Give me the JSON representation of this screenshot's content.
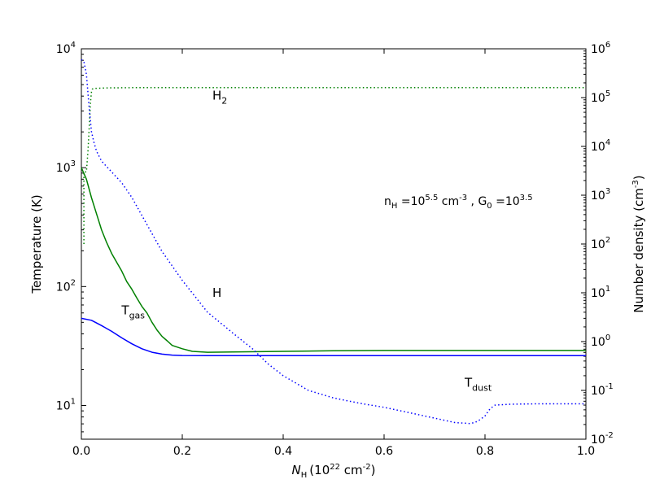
{
  "chart_data": {
    "type": "line",
    "x_axis": {
      "label_base": "N",
      "label_sub": "H",
      "label_rest": "(10",
      "label_exp": "22",
      "label_unit": " cm",
      "label_unit_exp": "-2",
      "label_close": ")",
      "range": [
        0.0,
        1.0
      ],
      "ticks": [
        {
          "value": 0.0,
          "label": "0.0"
        },
        {
          "value": 0.2,
          "label": "0.2"
        },
        {
          "value": 0.4,
          "label": "0.4"
        },
        {
          "value": 0.6,
          "label": "0.6"
        },
        {
          "value": 0.8,
          "label": "0.8"
        },
        {
          "value": 1.0,
          "label": "1.0"
        }
      ]
    },
    "y_left": {
      "label": "Temperature (K)",
      "scale": "log",
      "range": [
        5.2,
        10000
      ],
      "ticks": [
        {
          "value": 10,
          "base": "10",
          "exp": "1"
        },
        {
          "value": 100,
          "base": "10",
          "exp": "2"
        },
        {
          "value": 1000,
          "base": "10",
          "exp": "3"
        },
        {
          "value": 10000,
          "base": "10",
          "exp": "4"
        }
      ]
    },
    "y_right": {
      "label_main": "Number density (cm",
      "label_exp": "-3",
      "label_close": ")",
      "scale": "log",
      "range": [
        0.01,
        1000000
      ],
      "ticks": [
        {
          "value": 0.01,
          "base": "10",
          "exp": "-2"
        },
        {
          "value": 0.1,
          "base": "10",
          "exp": "-1"
        },
        {
          "value": 1,
          "base": "10",
          "exp": "0"
        },
        {
          "value": 10,
          "base": "10",
          "exp": "1"
        },
        {
          "value": 100,
          "base": "10",
          "exp": "2"
        },
        {
          "value": 1000,
          "base": "10",
          "exp": "3"
        },
        {
          "value": 10000,
          "base": "10",
          "exp": "4"
        },
        {
          "value": 100000,
          "base": "10",
          "exp": "5"
        },
        {
          "value": 1000000,
          "base": "10",
          "exp": "6"
        }
      ]
    },
    "annotation": {
      "n_base": "n",
      "n_sub": "H",
      "n_eq": " =10",
      "n_exp": "5.5",
      "n_unit": "  cm",
      "n_unit_exp": "-3",
      "sep": " , G",
      "g_sub": "0",
      "g_eq": " =10",
      "g_exp": "3.5"
    },
    "series": [
      {
        "name": "T",
        "name_sub": "gas",
        "axis": "left",
        "color": "#008000",
        "style": "solid",
        "x": [
          0.0,
          0.01,
          0.02,
          0.03,
          0.04,
          0.05,
          0.06,
          0.07,
          0.08,
          0.09,
          0.1,
          0.11,
          0.12,
          0.13,
          0.14,
          0.15,
          0.16,
          0.17,
          0.18,
          0.2,
          0.22,
          0.25,
          0.3,
          0.4,
          0.5,
          0.6,
          0.7,
          0.8,
          0.9,
          1.0
        ],
        "y": [
          1000,
          800,
          560,
          410,
          300,
          235,
          190,
          160,
          135,
          110,
          95,
          80,
          68,
          60,
          50,
          43,
          38,
          35,
          32,
          30,
          28.5,
          28,
          28.2,
          28.5,
          28.8,
          29,
          29,
          29,
          29,
          29
        ]
      },
      {
        "name": "T",
        "name_sub": "dust",
        "axis": "left",
        "color": "#0000ff",
        "style": "solid",
        "x": [
          0.0,
          0.02,
          0.04,
          0.06,
          0.08,
          0.1,
          0.12,
          0.14,
          0.16,
          0.18,
          0.2,
          0.25,
          0.3,
          0.4,
          0.6,
          0.8,
          1.0
        ],
        "y": [
          54,
          52,
          47,
          42,
          37,
          33,
          30,
          28,
          27,
          26.5,
          26.3,
          26.2,
          26.2,
          26.2,
          26.2,
          26.2,
          26.2
        ]
      },
      {
        "name": "H",
        "name_sub": "2",
        "axis": "right",
        "color": "#008000",
        "style": "dotted",
        "x": [
          0.005,
          0.005,
          0.01,
          0.013,
          0.016,
          0.018,
          0.02,
          0.022,
          0.025,
          0.03,
          0.05,
          0.1,
          0.2,
          0.4,
          0.6,
          0.8,
          1.0
        ],
        "y": [
          100,
          3000,
          3000,
          8000,
          30000,
          80000,
          130000,
          150000,
          155000,
          155000,
          158000,
          160000,
          160000,
          160000,
          160000,
          160000,
          160000
        ]
      },
      {
        "name": "H",
        "name_sub": "",
        "axis": "right",
        "color": "#0000ff",
        "style": "dotted",
        "x": [
          0.0,
          0.005,
          0.01,
          0.015,
          0.02,
          0.025,
          0.03,
          0.04,
          0.06,
          0.08,
          0.1,
          0.13,
          0.16,
          0.2,
          0.25,
          0.3,
          0.34,
          0.37,
          0.4,
          0.45,
          0.5,
          0.55,
          0.6,
          0.65,
          0.7,
          0.74,
          0.77,
          0.78,
          0.79,
          0.8,
          0.81,
          0.82,
          0.85,
          0.9,
          1.0
        ],
        "y": [
          600000,
          550000,
          300000,
          70000,
          20000,
          12000,
          8000,
          5000,
          3000,
          1800,
          900,
          250,
          70,
          18,
          4,
          1.5,
          0.7,
          0.35,
          0.2,
          0.1,
          0.07,
          0.055,
          0.045,
          0.035,
          0.027,
          0.022,
          0.021,
          0.022,
          0.025,
          0.03,
          0.042,
          0.05,
          0.052,
          0.053,
          0.053
        ]
      }
    ],
    "labels": [
      {
        "text": "T",
        "sub": "gas",
        "x": 0.12,
        "y": 63,
        "axis": "left"
      },
      {
        "text": "T",
        "sub": "dust",
        "x": 0.8,
        "y": 15.5,
        "axis": "left"
      },
      {
        "text": "H",
        "sub": "2",
        "x": 0.3,
        "y": 110000,
        "axis": "right"
      },
      {
        "text": "H",
        "sub": "",
        "x": 0.3,
        "y": 10,
        "axis": "right"
      }
    ]
  }
}
